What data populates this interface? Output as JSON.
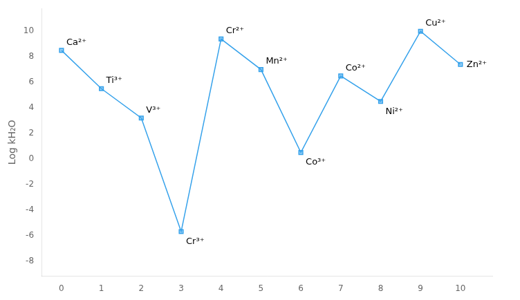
{
  "chart_data": {
    "type": "line",
    "x": [
      0,
      1,
      2,
      3,
      4,
      5,
      6,
      7,
      8,
      9,
      10
    ],
    "values": [
      8.5,
      5.5,
      3.2,
      -5.7,
      9.4,
      7.0,
      0.5,
      6.5,
      4.5,
      10.0,
      7.4
    ],
    "marker": "square",
    "ylabel": "Log kH₂O",
    "annotations": [
      {
        "text": "Ca²⁺",
        "x": 0,
        "y": 8.5
      },
      {
        "text": "Ti³⁺",
        "x": 1,
        "y": 5.5
      },
      {
        "text": "V³⁺",
        "x": 2,
        "y": 3.2
      },
      {
        "text": "Cr³⁺",
        "x": 3,
        "y": -5.7
      },
      {
        "text": "Cr²⁺",
        "x": 4,
        "y": 9.4
      },
      {
        "text": "Mn²⁺",
        "x": 5,
        "y": 7.0
      },
      {
        "text": "Co³⁺",
        "x": 6,
        "y": 0.5
      },
      {
        "text": "Co²⁺",
        "x": 7,
        "y": 6.5
      },
      {
        "text": "Ni²⁺",
        "x": 8,
        "y": 4.5
      },
      {
        "text": "Cu²⁺",
        "x": 9,
        "y": 10.0
      },
      {
        "text": "Zn²⁺",
        "x": 10,
        "y": 7.4
      }
    ],
    "xlim": [
      -0.5,
      10.8
    ],
    "ylim": [
      -9.2,
      11.8
    ],
    "xticks": [
      0,
      1,
      2,
      3,
      4,
      5,
      6,
      7,
      8,
      9,
      10
    ],
    "yticks": [
      -8,
      -6,
      -4,
      -2,
      0,
      2,
      4,
      6,
      8,
      10
    ],
    "grid": false
  }
}
